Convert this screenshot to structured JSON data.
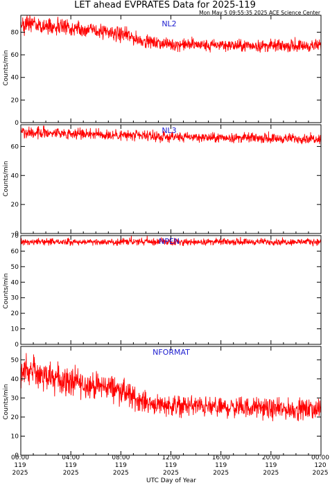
{
  "header": {
    "title": "LET ahead EVPRATES Data for 2025-119",
    "timestamp": "Mon May  5 09:55:35 2025 ACE Science Center"
  },
  "colors": {
    "series": "#ff0000",
    "panel_label": "#2020d0",
    "axis": "#000000",
    "background": "#ffffff"
  },
  "x_axis": {
    "label": "UTC Day of Year",
    "xlim": [
      0,
      24
    ],
    "unit": "hours",
    "ticks": [
      {
        "value": 0,
        "time": "00:00",
        "doy": "119",
        "year": "2025"
      },
      {
        "value": 4,
        "time": "04:00",
        "doy": "119",
        "year": "2025"
      },
      {
        "value": 8,
        "time": "08:00",
        "doy": "119",
        "year": "2025"
      },
      {
        "value": 12,
        "time": "12:00",
        "doy": "119",
        "year": "2025"
      },
      {
        "value": 16,
        "time": "16:00",
        "doy": "119",
        "year": "2025"
      },
      {
        "value": 20,
        "time": "20:00",
        "doy": "119",
        "year": "2025"
      },
      {
        "value": 24,
        "time": "00:00",
        "doy": "120",
        "year": "2025"
      }
    ]
  },
  "chart_data": [
    {
      "type": "line",
      "panel_label": "NL2",
      "ylabel": "Counts/min",
      "ylim": [
        0,
        95
      ],
      "yticks": [
        0,
        20,
        40,
        60,
        80
      ],
      "series": [
        {
          "name": "NL2",
          "x": [
            0,
            0.5,
            1,
            1.5,
            2,
            2.5,
            3,
            3.5,
            4,
            4.5,
            5,
            5.5,
            6,
            6.5,
            7,
            7.5,
            8,
            8.5,
            9,
            9.5,
            10,
            10.5,
            11,
            11.5,
            12,
            13,
            14,
            15,
            16,
            17,
            18,
            19,
            20,
            21,
            22,
            23,
            24
          ],
          "values": [
            86,
            87,
            88,
            86,
            85,
            86,
            84,
            85,
            83,
            84,
            82,
            82,
            81,
            80,
            80,
            79,
            78,
            77,
            75,
            73,
            72,
            71,
            70,
            70,
            69,
            69,
            69,
            68,
            69,
            68,
            68,
            68,
            68,
            68,
            68,
            68,
            68
          ],
          "spread": [
            6,
            6,
            6,
            6,
            6,
            6,
            6,
            6,
            5,
            5,
            5,
            5,
            5,
            5,
            5,
            5,
            5,
            5,
            5,
            4,
            4,
            4,
            4,
            4,
            4,
            4,
            4,
            4,
            4,
            4,
            4,
            4,
            4,
            4,
            4,
            4,
            4
          ]
        }
      ]
    },
    {
      "type": "line",
      "panel_label": "NL3",
      "ylabel": "Counts/min",
      "ylim": [
        0,
        75
      ],
      "yticks": [
        0,
        20,
        40,
        60
      ],
      "series": [
        {
          "name": "NL3",
          "x": [
            0,
            1,
            2,
            3,
            4,
            5,
            6,
            7,
            8,
            9,
            10,
            11,
            12,
            13,
            14,
            15,
            16,
            17,
            18,
            19,
            20,
            21,
            22,
            23,
            24
          ],
          "values": [
            70,
            70,
            69.5,
            69.5,
            69,
            69,
            68.5,
            68,
            68,
            67.5,
            67,
            66.5,
            66.5,
            66.5,
            66.5,
            66,
            66,
            66,
            66,
            66,
            65.5,
            65.5,
            65.5,
            65.5,
            65.5
          ],
          "spread": [
            3,
            3,
            3,
            3,
            3,
            3,
            3,
            3,
            3,
            3,
            2.5,
            2.5,
            2.5,
            2.5,
            2.5,
            2.5,
            2.5,
            2.5,
            2.5,
            2.5,
            2.5,
            2.5,
            2.5,
            2.5,
            2.5
          ]
        }
      ]
    },
    {
      "type": "line",
      "panel_label": "NPEN",
      "ylabel": "Counts/min",
      "ylim": [
        0,
        70
      ],
      "yticks": [
        0,
        10,
        20,
        30,
        40,
        50,
        60,
        70
      ],
      "series": [
        {
          "name": "NPEN",
          "x": [
            0,
            2,
            4,
            6,
            8,
            10,
            12,
            14,
            16,
            18,
            20,
            22,
            24
          ],
          "values": [
            66,
            66,
            66,
            66,
            66,
            66,
            66,
            66,
            66,
            66,
            66,
            66,
            66
          ],
          "spread": [
            1.6,
            1.6,
            1.6,
            1.6,
            1.6,
            1.6,
            1.6,
            1.6,
            1.6,
            1.6,
            1.6,
            1.6,
            1.6
          ]
        }
      ]
    },
    {
      "type": "line",
      "panel_label": "NFORMAT",
      "ylabel": "Counts/min",
      "ylim": [
        0,
        57
      ],
      "yticks": [
        0,
        10,
        20,
        30,
        40,
        50
      ],
      "series": [
        {
          "name": "NFORMAT",
          "x": [
            0,
            0.5,
            1,
            1.5,
            2,
            2.5,
            3,
            3.5,
            4,
            4.5,
            5,
            5.5,
            6,
            6.5,
            7,
            7.5,
            8,
            8.5,
            9,
            9.5,
            10,
            10.5,
            11,
            12,
            13,
            14,
            15,
            16,
            17,
            18,
            19,
            20,
            21,
            22,
            23,
            24
          ],
          "values": [
            46,
            45,
            44,
            42,
            41,
            40,
            40,
            39,
            38,
            38,
            37,
            37,
            36,
            36,
            36,
            35,
            34,
            32,
            30,
            29,
            28,
            27,
            27,
            26,
            26,
            26,
            25,
            25,
            25,
            25,
            25,
            24,
            24,
            24,
            24,
            24
          ],
          "spread": [
            6,
            6,
            6,
            6,
            6,
            6,
            6,
            6,
            6,
            6,
            5,
            5,
            5,
            5,
            5,
            5,
            5,
            5,
            5,
            4,
            4,
            4,
            4,
            4,
            4,
            4,
            4,
            4,
            4,
            4,
            4,
            4,
            4,
            4,
            4,
            4
          ]
        }
      ]
    }
  ]
}
